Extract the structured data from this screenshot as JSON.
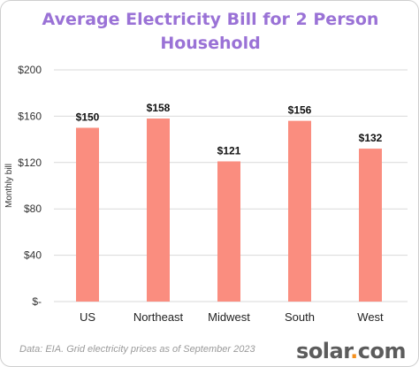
{
  "chart_data": {
    "type": "bar",
    "title_lines": [
      "Average Electricity Bill for 2 Person",
      "Household"
    ],
    "ylabel": "Monthly bill",
    "xlabel": "",
    "categories": [
      "US",
      "Northeast",
      "Midwest",
      "South",
      "West"
    ],
    "values": [
      150,
      158,
      121,
      156,
      132
    ],
    "data_labels": [
      "$150",
      "$158",
      "$121",
      "$156",
      "$132"
    ],
    "ylim": [
      0,
      200
    ],
    "yticks": [
      0,
      40,
      80,
      120,
      160,
      200
    ],
    "ytick_labels": [
      "$-",
      "$40",
      "$80",
      "$120",
      "$160",
      "$200"
    ],
    "grid": true,
    "bar_color": "#fa8d7f",
    "title_color": "#9a72d6"
  },
  "footer": {
    "source_note": "Data: EIA. Grid electricity prices as of September 2023",
    "logo_word": "solar",
    "logo_dot": ".",
    "logo_suffix": "com"
  }
}
